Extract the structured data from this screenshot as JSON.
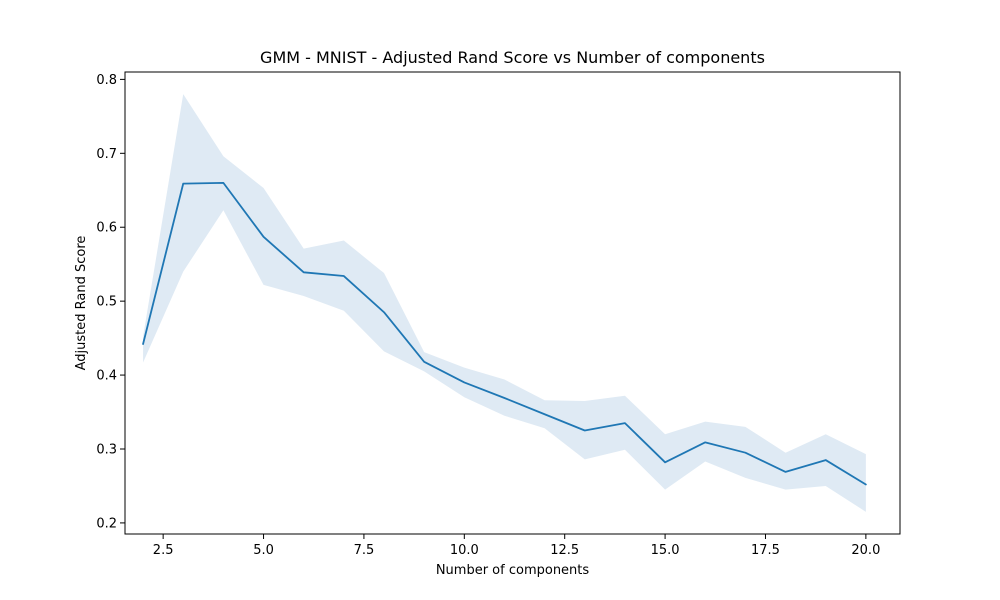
{
  "chart_data": {
    "type": "line",
    "title": "GMM - MNIST - Adjusted Rand Score vs Number of components",
    "xlabel": "Number of components",
    "ylabel": "Adjusted Rand Score",
    "xlim": [
      1.55,
      20.85
    ],
    "ylim": [
      0.185,
      0.81
    ],
    "xticks": [
      2.5,
      5.0,
      7.5,
      10.0,
      12.5,
      15.0,
      17.5,
      20.0
    ],
    "xtick_labels": [
      "2.5",
      "5.0",
      "7.5",
      "10.0",
      "12.5",
      "15.0",
      "17.5",
      "20.0"
    ],
    "yticks": [
      0.2,
      0.3,
      0.4,
      0.5,
      0.6,
      0.7,
      0.8
    ],
    "ytick_labels": [
      "0.2",
      "0.3",
      "0.4",
      "0.5",
      "0.6",
      "0.7",
      "0.8"
    ],
    "grid": false,
    "line_color": "#1f77b4",
    "band_color": "#dfeaf4",
    "series": [
      {
        "x": [
          2,
          3,
          4,
          5,
          6,
          7,
          8,
          9,
          10,
          11,
          12,
          13,
          14,
          15,
          16,
          17,
          18,
          19,
          20
        ],
        "values": [
          0.442,
          0.659,
          0.66,
          0.587,
          0.539,
          0.534,
          0.485,
          0.418,
          0.39,
          0.369,
          0.347,
          0.325,
          0.335,
          0.282,
          0.309,
          0.295,
          0.269,
          0.285,
          0.252
        ],
        "lower": [
          0.417,
          0.54,
          0.623,
          0.522,
          0.507,
          0.487,
          0.432,
          0.405,
          0.37,
          0.345,
          0.328,
          0.286,
          0.299,
          0.245,
          0.283,
          0.261,
          0.245,
          0.25,
          0.215
        ],
        "upper": [
          0.452,
          0.78,
          0.696,
          0.653,
          0.571,
          0.582,
          0.538,
          0.431,
          0.41,
          0.394,
          0.366,
          0.365,
          0.372,
          0.32,
          0.337,
          0.33,
          0.295,
          0.32,
          0.293
        ]
      }
    ]
  }
}
